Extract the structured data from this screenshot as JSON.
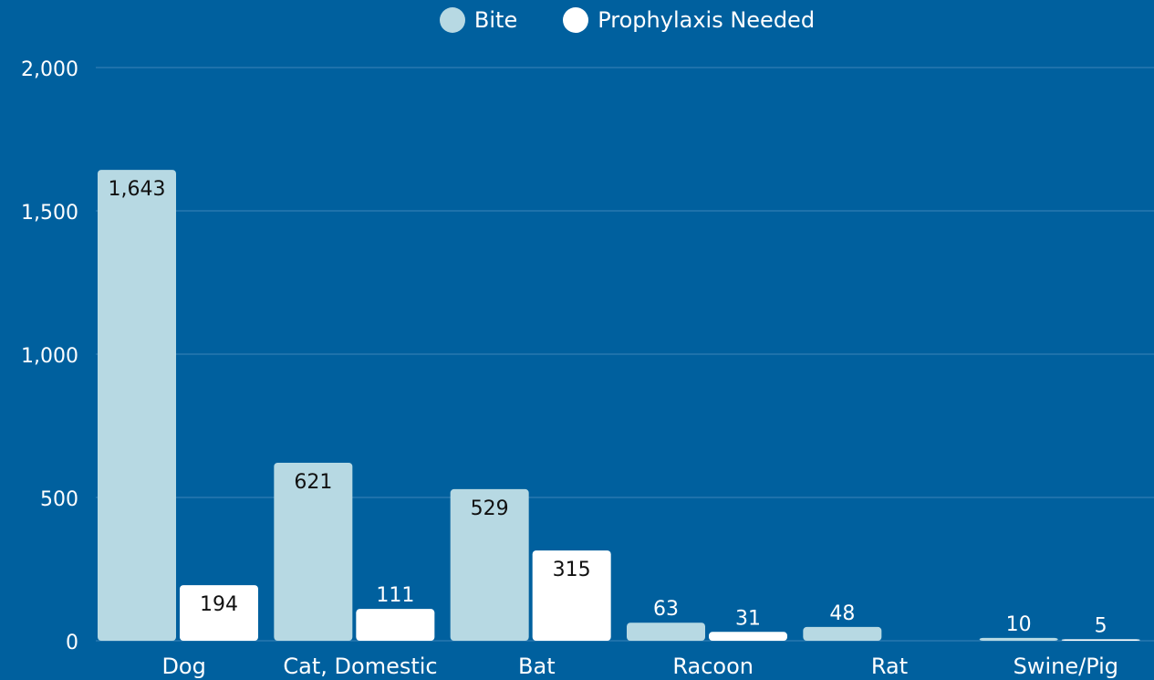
{
  "colors": {
    "background": "#00609e",
    "bite": "#b7d9e3",
    "prophylaxis": "#ffffff",
    "grid": "#3b85b8",
    "text_light": "#ffffff",
    "text_dark": "#111111"
  },
  "legend": [
    {
      "label": "Bite",
      "color": "#b7d9e3"
    },
    {
      "label": "Prophylaxis Needed",
      "color": "#ffffff"
    }
  ],
  "chart_data": {
    "type": "bar",
    "title": "",
    "xlabel": "",
    "ylabel": "",
    "ylim": [
      0,
      2000
    ],
    "yticks": [
      "0",
      "500",
      "1,000",
      "1,500",
      "2,000"
    ],
    "ytick_values": [
      0,
      500,
      1000,
      1500,
      2000
    ],
    "grid": true,
    "legend_position": "top-center",
    "categories": [
      "Dog",
      "Cat, Domestic",
      "Bat",
      "Racoon",
      "Rat",
      "Swine/Pig"
    ],
    "series": [
      {
        "name": "Bite",
        "values": [
          1643,
          621,
          529,
          63,
          48,
          10
        ],
        "labels": [
          "1,643",
          "621",
          "529",
          "63",
          "48",
          "10"
        ]
      },
      {
        "name": "Prophylaxis Needed",
        "values": [
          194,
          111,
          315,
          31,
          null,
          5
        ],
        "labels": [
          "194",
          "111",
          "315",
          "31",
          "",
          "5"
        ]
      }
    ]
  }
}
